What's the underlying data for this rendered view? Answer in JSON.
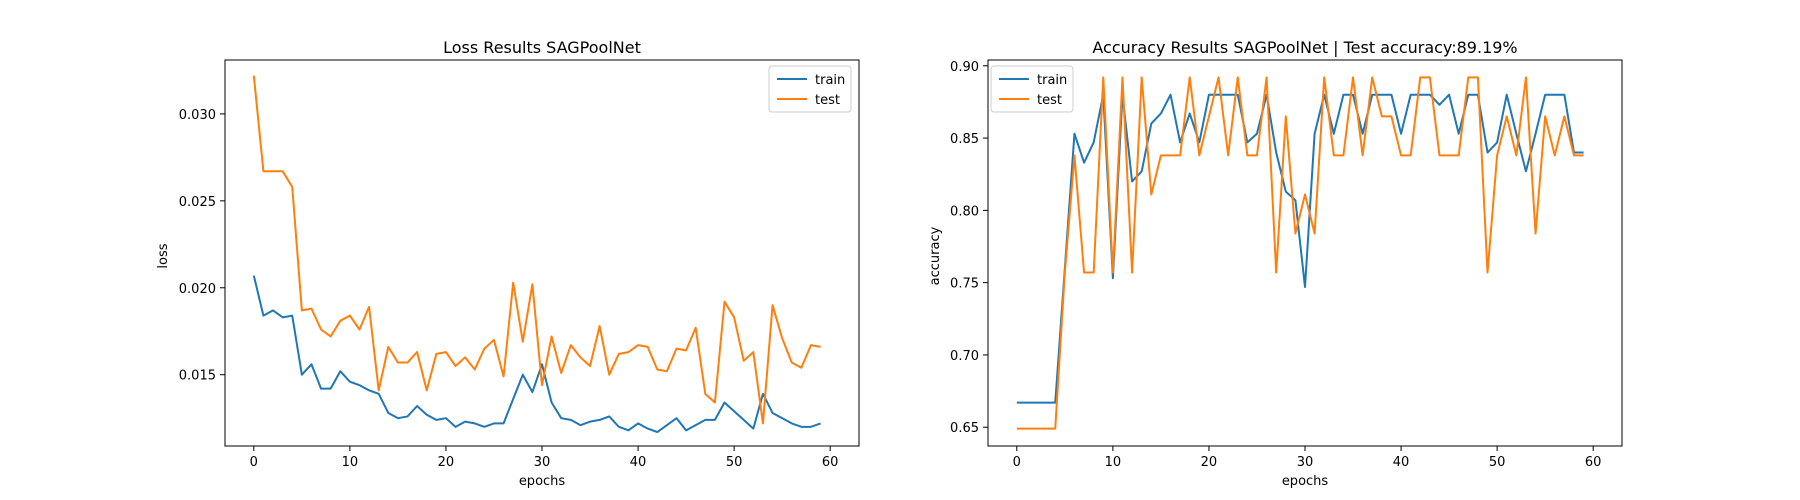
{
  "chart_data": [
    {
      "type": "line",
      "title": "Loss Results SAGPoolNet",
      "xlabel": "epochs",
      "ylabel": "loss",
      "xlim": [
        -3,
        63
      ],
      "ylim": [
        0.0109,
        0.0331
      ],
      "xticks": [
        0,
        10,
        20,
        30,
        40,
        50,
        60
      ],
      "yticks": [
        0.015,
        0.02,
        0.025,
        0.03
      ],
      "ytick_labels": [
        "0.015",
        "0.020",
        "0.025",
        "0.030"
      ],
      "grid": false,
      "legend": "upper right",
      "series": [
        {
          "name": "train",
          "color": "#1f77b4",
          "x": [
            0,
            1,
            2,
            3,
            4,
            5,
            6,
            7,
            8,
            9,
            10,
            11,
            12,
            13,
            14,
            15,
            16,
            17,
            18,
            19,
            20,
            21,
            22,
            23,
            24,
            25,
            26,
            27,
            28,
            29,
            30,
            31,
            32,
            33,
            34,
            35,
            36,
            37,
            38,
            39,
            40,
            41,
            42,
            43,
            44,
            45,
            46,
            47,
            48,
            49,
            50,
            51,
            52,
            53,
            54,
            55,
            56,
            57,
            58,
            59
          ],
          "values": [
            0.0207,
            0.0184,
            0.0187,
            0.0183,
            0.0184,
            0.015,
            0.0156,
            0.0142,
            0.0142,
            0.0152,
            0.0146,
            0.0144,
            0.0141,
            0.0139,
            0.0128,
            0.0125,
            0.0126,
            0.0132,
            0.0127,
            0.0124,
            0.0125,
            0.012,
            0.0123,
            0.0122,
            0.012,
            0.0122,
            0.0122,
            0.0136,
            0.015,
            0.014,
            0.0156,
            0.0134,
            0.0125,
            0.0124,
            0.0121,
            0.0123,
            0.0124,
            0.0126,
            0.012,
            0.0118,
            0.0122,
            0.0119,
            0.0117,
            0.0121,
            0.0125,
            0.0118,
            0.0121,
            0.0124,
            0.0124,
            0.0134,
            0.0129,
            0.0124,
            0.0119,
            0.0139,
            0.0128,
            0.0125,
            0.0122,
            0.012,
            0.012,
            0.0122
          ]
        },
        {
          "name": "test",
          "color": "#ff7f0e",
          "x": [
            0,
            1,
            2,
            3,
            4,
            5,
            6,
            7,
            8,
            9,
            10,
            11,
            12,
            13,
            14,
            15,
            16,
            17,
            18,
            19,
            20,
            21,
            22,
            23,
            24,
            25,
            26,
            27,
            28,
            29,
            30,
            31,
            32,
            33,
            34,
            35,
            36,
            37,
            38,
            39,
            40,
            41,
            42,
            43,
            44,
            45,
            46,
            47,
            48,
            49,
            50,
            51,
            52,
            53,
            54,
            55,
            56,
            57,
            58,
            59
          ],
          "values": [
            0.0322,
            0.0267,
            0.0267,
            0.0267,
            0.0258,
            0.0187,
            0.0188,
            0.0176,
            0.0172,
            0.0181,
            0.0184,
            0.0176,
            0.0189,
            0.0141,
            0.0166,
            0.0157,
            0.0157,
            0.0163,
            0.0141,
            0.0162,
            0.0163,
            0.0155,
            0.016,
            0.0153,
            0.0165,
            0.017,
            0.0149,
            0.0203,
            0.0169,
            0.0202,
            0.0144,
            0.0172,
            0.0151,
            0.0167,
            0.016,
            0.0155,
            0.0178,
            0.015,
            0.0162,
            0.0163,
            0.0167,
            0.0166,
            0.0153,
            0.0152,
            0.0165,
            0.0164,
            0.0177,
            0.0139,
            0.0134,
            0.0192,
            0.0183,
            0.0158,
            0.0163,
            0.0122,
            0.019,
            0.0171,
            0.0157,
            0.0154,
            0.0167,
            0.0166
          ]
        }
      ]
    },
    {
      "type": "line",
      "title": "Accuracy Results SAGPoolNet | Test accuracy:89.19%",
      "xlabel": "epochs",
      "ylabel": "accuracy",
      "xlim": [
        -3,
        63
      ],
      "ylim": [
        0.637,
        0.904
      ],
      "xticks": [
        0,
        10,
        20,
        30,
        40,
        50,
        60
      ],
      "yticks": [
        0.65,
        0.7,
        0.75,
        0.8,
        0.85,
        0.9
      ],
      "ytick_labels": [
        "0.65",
        "0.70",
        "0.75",
        "0.80",
        "0.85",
        "0.90"
      ],
      "grid": false,
      "legend": "upper left",
      "series": [
        {
          "name": "train",
          "color": "#1f77b4",
          "x": [
            0,
            1,
            2,
            3,
            4,
            5,
            6,
            7,
            8,
            9,
            10,
            11,
            12,
            13,
            14,
            15,
            16,
            17,
            18,
            19,
            20,
            21,
            22,
            23,
            24,
            25,
            26,
            27,
            28,
            29,
            30,
            31,
            32,
            33,
            34,
            35,
            36,
            37,
            38,
            39,
            40,
            41,
            42,
            43,
            44,
            45,
            46,
            47,
            48,
            49,
            50,
            51,
            52,
            53,
            54,
            55,
            56,
            57,
            58,
            59
          ],
          "values": [
            0.667,
            0.667,
            0.667,
            0.667,
            0.667,
            0.76,
            0.853,
            0.833,
            0.847,
            0.88,
            0.753,
            0.88,
            0.82,
            0.827,
            0.86,
            0.867,
            0.88,
            0.847,
            0.867,
            0.847,
            0.88,
            0.88,
            0.88,
            0.88,
            0.847,
            0.853,
            0.88,
            0.84,
            0.813,
            0.807,
            0.747,
            0.853,
            0.88,
            0.853,
            0.88,
            0.88,
            0.853,
            0.88,
            0.88,
            0.88,
            0.853,
            0.88,
            0.88,
            0.88,
            0.873,
            0.88,
            0.853,
            0.88,
            0.88,
            0.84,
            0.847,
            0.88,
            0.853,
            0.827,
            0.853,
            0.88,
            0.88,
            0.88,
            0.84,
            0.84
          ]
        },
        {
          "name": "test",
          "color": "#ff7f0e",
          "x": [
            0,
            1,
            2,
            3,
            4,
            5,
            6,
            7,
            8,
            9,
            10,
            11,
            12,
            13,
            14,
            15,
            16,
            17,
            18,
            19,
            20,
            21,
            22,
            23,
            24,
            25,
            26,
            27,
            28,
            29,
            30,
            31,
            32,
            33,
            34,
            35,
            36,
            37,
            38,
            39,
            40,
            41,
            42,
            43,
            44,
            45,
            46,
            47,
            48,
            49,
            50,
            51,
            52,
            53,
            54,
            55,
            56,
            57,
            58,
            59
          ],
          "values": [
            0.649,
            0.649,
            0.649,
            0.649,
            0.649,
            0.757,
            0.838,
            0.757,
            0.757,
            0.892,
            0.757,
            0.892,
            0.757,
            0.892,
            0.811,
            0.838,
            0.838,
            0.838,
            0.892,
            0.838,
            0.865,
            0.892,
            0.838,
            0.892,
            0.838,
            0.838,
            0.892,
            0.757,
            0.865,
            0.784,
            0.811,
            0.784,
            0.892,
            0.838,
            0.838,
            0.892,
            0.838,
            0.892,
            0.865,
            0.865,
            0.838,
            0.838,
            0.892,
            0.892,
            0.838,
            0.838,
            0.838,
            0.892,
            0.892,
            0.757,
            0.838,
            0.865,
            0.838,
            0.892,
            0.784,
            0.865,
            0.838,
            0.865,
            0.838,
            0.838
          ]
        }
      ]
    }
  ]
}
